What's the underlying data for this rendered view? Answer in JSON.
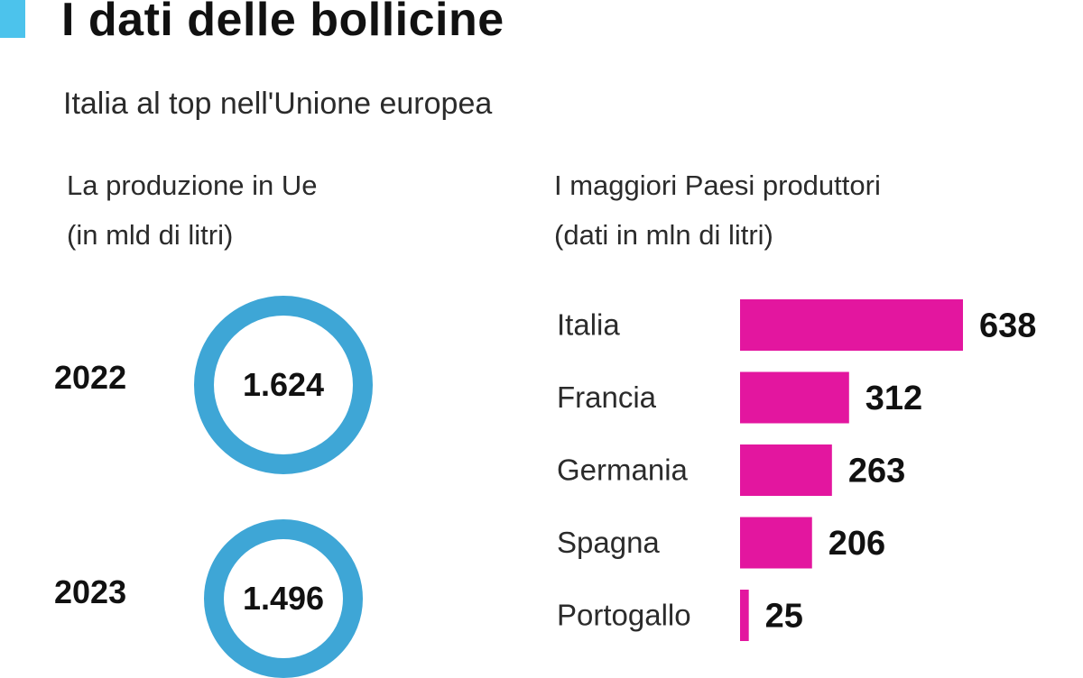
{
  "title": "I dati delle bollicine",
  "subtitle": "Italia al top nell'Unione europea",
  "left_section": {
    "title_line1": "La produzione in Ue",
    "title_line2": "(in mld di litri)"
  },
  "right_section": {
    "title_line1": "I maggiori Paesi produttori",
    "title_line2": "(dati in mln di litri)"
  },
  "colors": {
    "accent": "#4cc3ec",
    "ring": "#3ea6d6",
    "bar": "#e3169f"
  },
  "chart_data": [
    {
      "type": "donut",
      "unit": "mld di litri",
      "categories": [
        "2022",
        "2023"
      ],
      "values": [
        1.624,
        1.496
      ],
      "value_labels": [
        "1.624",
        "1.496"
      ]
    },
    {
      "type": "bar",
      "orientation": "horizontal",
      "unit": "mln di litri",
      "categories": [
        "Italia",
        "Francia",
        "Germania",
        "Spagna",
        "Portogallo"
      ],
      "values": [
        638,
        312,
        263,
        206,
        25
      ],
      "value_labels": [
        "638",
        "312",
        "263",
        "206",
        "25"
      ]
    }
  ]
}
